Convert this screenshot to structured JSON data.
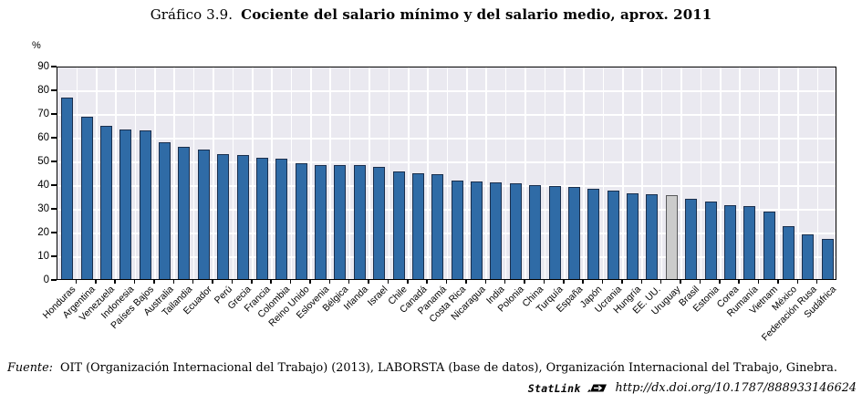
{
  "title": {
    "prefix": "Gráfico 3.9.",
    "main": "Cociente del salario mínimo y del salario medio, aprox. 2011"
  },
  "y_axis_unit": "%",
  "chart_data": {
    "type": "bar",
    "title": "Gráfico 3.9. Cociente del salario mínimo y del salario medio, aprox. 2011",
    "xlabel": "",
    "ylabel": "%",
    "ylim": [
      0,
      90
    ],
    "ytick_step": 10,
    "grid": true,
    "legend": "none",
    "categories": [
      "Honduras",
      "Argentina",
      "Venezuela",
      "Indonesia",
      "Países Bajos",
      "Australia",
      "Tailandia",
      "Ecuador",
      "Perú",
      "Grecia",
      "Francia",
      "Colombia",
      "Reino Unido",
      "Eslovenia",
      "Bélgica",
      "Irlanda",
      "Israel",
      "Chile",
      "Canadá",
      "Panamá",
      "Costa Rica",
      "Nicaragua",
      "India",
      "Polonia",
      "China",
      "Turquía",
      "España",
      "Japón",
      "Ucrania",
      "Hungría",
      "EE. UU.",
      "Uruguay",
      "Brasil",
      "Estonia",
      "Corea",
      "Rumanía",
      "Vietnam",
      "México",
      "Federación Rusa",
      "Sudáfrica"
    ],
    "values": [
      77,
      69,
      65,
      63.5,
      63,
      58,
      56,
      55,
      53,
      52.5,
      51.5,
      51,
      49,
      48.5,
      48.5,
      48.5,
      47.5,
      45.5,
      45,
      44.5,
      42,
      41.5,
      41,
      40.5,
      40,
      39.5,
      39,
      38.5,
      37.5,
      36.5,
      36,
      35.5,
      34,
      33,
      31.5,
      31,
      28.5,
      22.5,
      19,
      17
    ],
    "highlight_category": "Uruguay",
    "colors": {
      "bar": "#2f6ba6",
      "bar_border": "#1a2f4d",
      "highlight": "#cbcbcb",
      "highlight_border": "#58595b",
      "plot_bg": "#eae9f0",
      "gridline": "#ffffff",
      "axis": "#000000"
    }
  },
  "footer": {
    "fuente_label": "Fuente:",
    "fuente_text": "OIT (Organización Internacional del Trabajo) (2013), LABORSTA (base de datos), Organización Internacional del Trabajo, Ginebra.",
    "statlink_label": "StatLink",
    "statlink_url": "http://dx.doi.org/10.1787/888933146624"
  }
}
